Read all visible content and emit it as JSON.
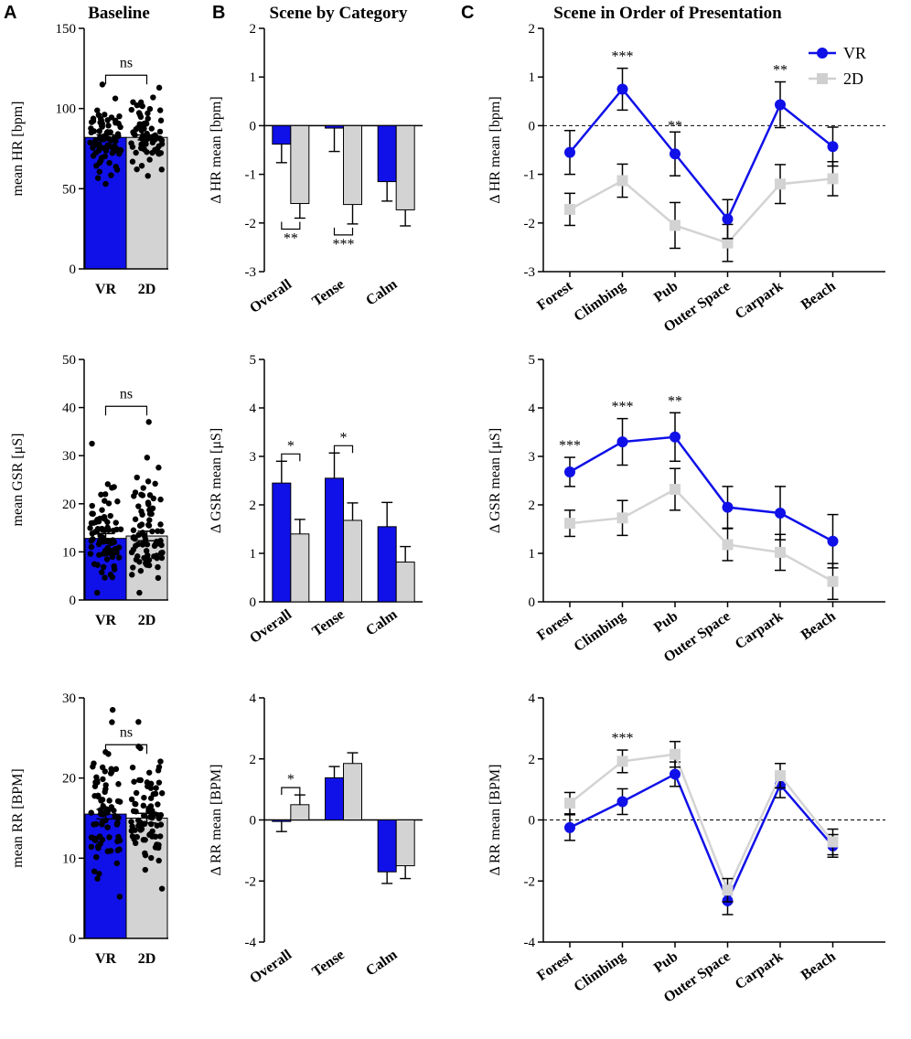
{
  "panel_letters": [
    "A",
    "B",
    "C"
  ],
  "column_titles": [
    "Baseline",
    "Scene by Category",
    "Scene in Order of Presentation"
  ],
  "legend": {
    "entries": [
      {
        "label": "VR",
        "color": "#1010e8",
        "marker": "circle"
      },
      {
        "label": "2D",
        "color": "#cfcfcf",
        "marker": "square"
      }
    ]
  },
  "colors": {
    "vr": "#1010e8",
    "twod": "#d3d3d3",
    "dots": "#000000"
  },
  "chart_data": [
    {
      "id": "A1",
      "type": "bar",
      "title": "Baseline",
      "ylabel": "mean HR [bpm]",
      "categories": [
        "VR",
        "2D"
      ],
      "values": [
        82,
        82
      ],
      "errors": [
        1.6,
        1.5
      ],
      "ylim": [
        0,
        150
      ],
      "yticks": [
        0,
        50,
        100,
        150
      ],
      "comparison": "ns",
      "scatter": {
        "VR": {
          "min": 53,
          "max": 115,
          "mean": 82
        },
        "2D": {
          "min": 58,
          "max": 113,
          "mean": 82
        }
      }
    },
    {
      "id": "A2",
      "type": "bar",
      "ylabel": "mean GSR [μS]",
      "categories": [
        "VR",
        "2D"
      ],
      "values": [
        12.8,
        13.3
      ],
      "errors": [
        1.0,
        1.0
      ],
      "ylim": [
        0,
        50
      ],
      "yticks": [
        0,
        10,
        20,
        30,
        40,
        50
      ],
      "comparison": "ns",
      "scatter": {
        "VR": {
          "min": 1.5,
          "max": 32.5,
          "mean": 12.8
        },
        "2D": {
          "min": 1.5,
          "max": 37,
          "mean": 13.3
        }
      }
    },
    {
      "id": "A3",
      "type": "bar",
      "ylabel": "mean RR [BPM]",
      "categories": [
        "VR",
        "2D"
      ],
      "values": [
        15.5,
        15.0
      ],
      "errors": [
        0.6,
        0.6
      ],
      "ylim": [
        0,
        30
      ],
      "yticks": [
        0,
        10,
        20,
        30
      ],
      "comparison": "ns",
      "scatter": {
        "VR": {
          "min": 5.2,
          "max": 28.5,
          "mean": 15.5
        },
        "2D": {
          "min": 6.2,
          "max": 27,
          "mean": 15.0
        }
      }
    },
    {
      "id": "B1",
      "type": "bar",
      "title": "Scene by Category",
      "ylabel": "Δ HR mean [bpm]",
      "categories": [
        "Overall",
        "Tense",
        "Calm"
      ],
      "series": [
        {
          "name": "VR",
          "values": [
            -0.38,
            -0.05,
            -1.15
          ],
          "errors": [
            0.38,
            0.48,
            0.4
          ]
        },
        {
          "name": "2D",
          "values": [
            -1.6,
            -1.62,
            -1.73
          ],
          "errors": [
            0.3,
            0.4,
            0.33
          ]
        }
      ],
      "ylim": [
        -3,
        2
      ],
      "yticks": [
        -3,
        -2,
        -1,
        0,
        1,
        2
      ],
      "significance": [
        {
          "category": "Overall",
          "label": "**"
        },
        {
          "category": "Tense",
          "label": "***"
        }
      ]
    },
    {
      "id": "B2",
      "type": "bar",
      "ylabel": "Δ GSR mean [μS]",
      "categories": [
        "Overall",
        "Tense",
        "Calm"
      ],
      "series": [
        {
          "name": "VR",
          "values": [
            2.45,
            2.55,
            1.55
          ],
          "errors": [
            0.45,
            0.52,
            0.5
          ]
        },
        {
          "name": "2D",
          "values": [
            1.4,
            1.68,
            0.82
          ],
          "errors": [
            0.3,
            0.36,
            0.32
          ]
        }
      ],
      "ylim": [
        0,
        5
      ],
      "yticks": [
        0,
        1,
        2,
        3,
        4,
        5
      ],
      "significance": [
        {
          "category": "Overall",
          "label": "*"
        },
        {
          "category": "Tense",
          "label": "*"
        }
      ]
    },
    {
      "id": "B3",
      "type": "bar",
      "ylabel": "Δ RR mean [BPM]",
      "categories": [
        "Overall",
        "Tense",
        "Calm"
      ],
      "series": [
        {
          "name": "VR",
          "values": [
            -0.05,
            1.38,
            -1.7
          ],
          "errors": [
            0.33,
            0.37,
            0.38
          ]
        },
        {
          "name": "2D",
          "values": [
            0.5,
            1.85,
            -1.5
          ],
          "errors": [
            0.32,
            0.35,
            0.42
          ]
        }
      ],
      "ylim": [
        -4,
        4
      ],
      "yticks": [
        -4,
        -2,
        0,
        2,
        4
      ],
      "significance": [
        {
          "category": "Overall",
          "label": "*"
        }
      ]
    },
    {
      "id": "C1",
      "type": "line",
      "title": "Scene in Order of Presentation",
      "ylabel": "Δ HR mean [bpm]",
      "categories": [
        "Forest",
        "Climbing",
        "Pub",
        "Outer Space",
        "Carpark",
        "Beach"
      ],
      "series": [
        {
          "name": "VR",
          "values": [
            -0.55,
            0.75,
            -0.58,
            -1.92,
            0.43,
            -0.43
          ],
          "errors": [
            0.45,
            0.43,
            0.45,
            0.4,
            0.47,
            0.4
          ]
        },
        {
          "name": "2D",
          "values": [
            -1.72,
            -1.13,
            -2.05,
            -2.41,
            -1.2,
            -1.09
          ],
          "errors": [
            0.33,
            0.34,
            0.47,
            0.38,
            0.4,
            0.35
          ]
        }
      ],
      "ylim": [
        -3,
        2
      ],
      "yticks": [
        -3,
        -2,
        -1,
        0,
        1,
        2
      ],
      "reference_line": 0,
      "significance": [
        {
          "category": "Climbing",
          "label": "***"
        },
        {
          "category": "Pub",
          "label": "**"
        },
        {
          "category": "Carpark",
          "label": "**"
        }
      ]
    },
    {
      "id": "C2",
      "type": "line",
      "ylabel": "Δ GSR mean [μS]",
      "categories": [
        "Forest",
        "Climbing",
        "Pub",
        "Outer Space",
        "Carpark",
        "Beach"
      ],
      "series": [
        {
          "name": "VR",
          "values": [
            2.68,
            3.3,
            3.4,
            1.95,
            1.83,
            1.25
          ],
          "errors": [
            0.3,
            0.48,
            0.5,
            0.43,
            0.55,
            0.55
          ]
        },
        {
          "name": "2D",
          "values": [
            1.62,
            1.73,
            2.32,
            1.18,
            1.02,
            0.42
          ],
          "errors": [
            0.27,
            0.36,
            0.43,
            0.33,
            0.37,
            0.37
          ]
        }
      ],
      "ylim": [
        0,
        5
      ],
      "yticks": [
        0,
        1,
        2,
        3,
        4,
        5
      ],
      "significance": [
        {
          "category": "Forest",
          "label": "***"
        },
        {
          "category": "Climbing",
          "label": "***"
        },
        {
          "category": "Pub",
          "label": "**"
        }
      ]
    },
    {
      "id": "C3",
      "type": "line",
      "ylabel": "Δ RR mean [BPM]",
      "categories": [
        "Forest",
        "Climbing",
        "Pub",
        "Outer Space",
        "Carpark",
        "Beach"
      ],
      "series": [
        {
          "name": "VR",
          "values": [
            -0.25,
            0.6,
            1.5,
            -2.65,
            1.15,
            -0.85
          ],
          "errors": [
            0.42,
            0.42,
            0.4,
            0.45,
            0.42,
            0.37
          ]
        },
        {
          "name": "2D",
          "values": [
            0.55,
            1.92,
            2.15,
            -2.3,
            1.45,
            -0.72
          ],
          "errors": [
            0.35,
            0.37,
            0.42,
            0.38,
            0.4,
            0.42
          ]
        }
      ],
      "ylim": [
        -4,
        4
      ],
      "yticks": [
        -4,
        -2,
        0,
        2,
        4
      ],
      "reference_line": 0,
      "significance": [
        {
          "category": "Climbing",
          "label": "***"
        }
      ]
    }
  ]
}
